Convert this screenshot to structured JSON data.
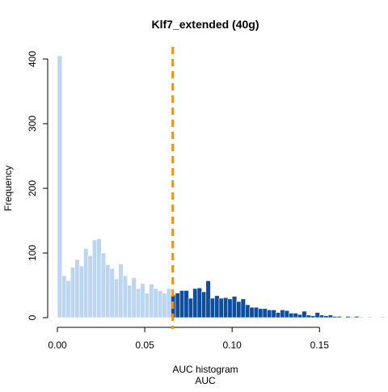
{
  "chart_data": {
    "type": "bar",
    "title": "Klf7_extended (40g)",
    "xlabel": "AUC",
    "sublabel": "AUC histogram",
    "ylabel": "Frequency",
    "xlim": [
      0.0,
      0.17
    ],
    "ylim": [
      0,
      400
    ],
    "x_ticks": [
      0.0,
      0.05,
      0.1,
      0.15
    ],
    "x_tick_labels": [
      "0.00",
      "0.05",
      "0.10",
      "0.15"
    ],
    "y_ticks": [
      0,
      100,
      200,
      300,
      400
    ],
    "y_tick_labels": [
      "0",
      "100",
      "200",
      "300",
      "400"
    ],
    "bin_width": 0.0025,
    "bin_start": 0.0,
    "values": [
      405,
      65,
      57,
      78,
      90,
      80,
      107,
      96,
      120,
      122,
      100,
      82,
      76,
      60,
      83,
      65,
      50,
      62,
      45,
      53,
      38,
      52,
      45,
      42,
      38,
      45,
      35,
      38,
      42,
      42,
      30,
      45,
      46,
      40,
      57,
      30,
      34,
      30,
      31,
      29,
      33,
      25,
      29,
      20,
      16,
      16,
      14,
      14,
      12,
      12,
      8,
      12,
      11,
      7,
      7,
      5,
      10,
      4,
      3,
      8,
      4,
      3,
      4,
      2,
      2,
      0,
      2,
      1,
      2,
      1,
      0,
      1,
      0,
      0,
      1,
      0,
      0,
      0
    ],
    "threshold": 0.066,
    "colors": {
      "below_threshold": "#bcd6f2",
      "above_threshold": "#0d4f9e",
      "threshold_line": "#f0901e"
    },
    "grid": false,
    "legend": "none"
  }
}
